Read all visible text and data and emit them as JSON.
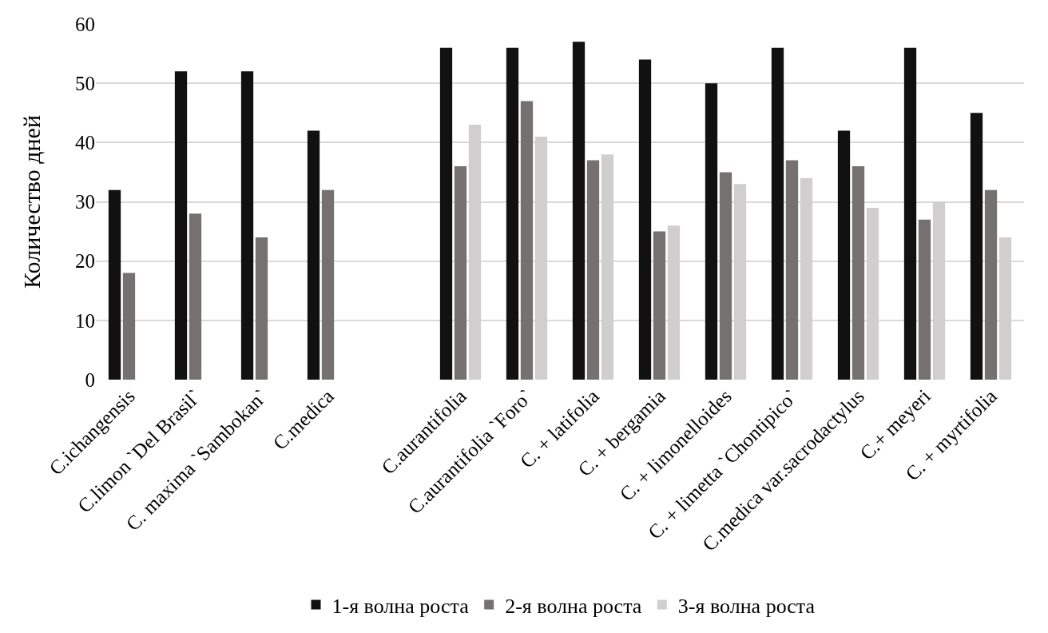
{
  "chart_data": {
    "type": "bar",
    "ylabel": "Количество дней",
    "categories": [
      "C.ichangensis",
      "C.limon `Del Brasil`",
      "C. maxima `Sambokan`",
      "C.medica",
      null,
      "C.aurantifolia",
      "C.aurantifolia `Foro`",
      "C. + latifolia",
      "C. + bergamia",
      "C. + limonelloides",
      "C. + limetta `Chontipico`",
      "C.medica var.sacrodactylus",
      "C.+ meyeri",
      "C. + myrtifolia"
    ],
    "series": [
      {
        "name": "1-я волна роста",
        "color": "#111111",
        "values": [
          32,
          52,
          52,
          42,
          null,
          56,
          56,
          57,
          54,
          50,
          56,
          42,
          56,
          45
        ]
      },
      {
        "name": "2-я волна роста",
        "color": "#767171",
        "values": [
          18,
          28,
          24,
          32,
          null,
          36,
          47,
          37,
          25,
          35,
          37,
          36,
          27,
          32
        ]
      },
      {
        "name": "3-я волна роста",
        "color": "#d0cece",
        "values": [
          null,
          null,
          null,
          null,
          null,
          43,
          41,
          38,
          26,
          33,
          34,
          29,
          30,
          24
        ]
      }
    ],
    "ylim": [
      0,
      60
    ],
    "yticks": [
      0,
      10,
      20,
      30,
      40,
      50,
      60
    ],
    "grid": "y",
    "legend": "bottom"
  }
}
